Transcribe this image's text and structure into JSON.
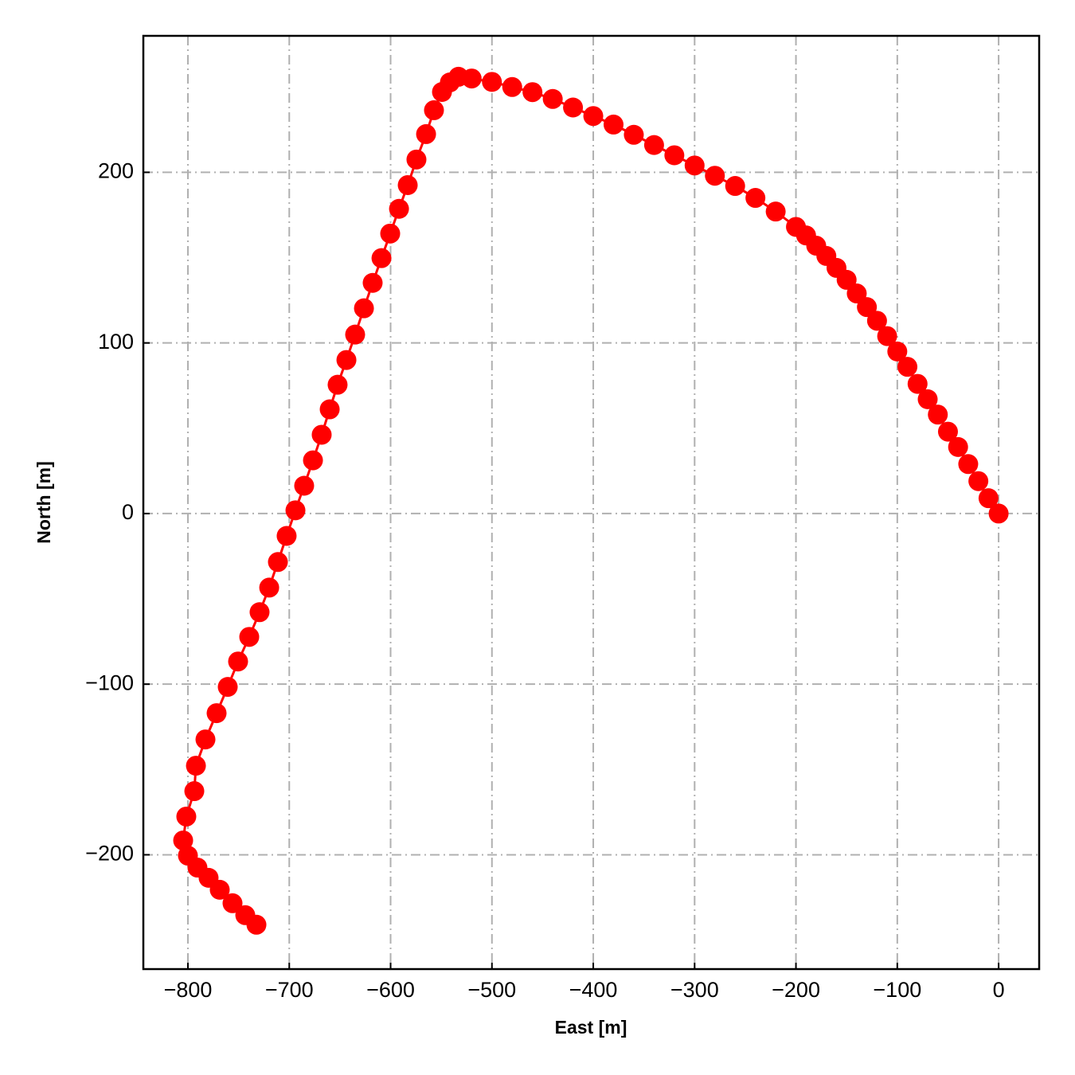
{
  "chart_data": {
    "type": "line",
    "xlabel": "East [m]",
    "ylabel": "North [m]",
    "xlim": [
      -844,
      40
    ],
    "ylim": [
      -267,
      280
    ],
    "grid": true,
    "xticks": [
      {
        "value": -800,
        "label": "−800"
      },
      {
        "value": -700,
        "label": "−700"
      },
      {
        "value": -600,
        "label": "−600"
      },
      {
        "value": -500,
        "label": "−500"
      },
      {
        "value": -400,
        "label": "−400"
      },
      {
        "value": -300,
        "label": "−300"
      },
      {
        "value": -200,
        "label": "−200"
      },
      {
        "value": -100,
        "label": "−100"
      },
      0
    ],
    "yticks": [
      {
        "value": -200,
        "label": "−200"
      },
      {
        "value": -100,
        "label": "−100"
      },
      0,
      100,
      200
    ],
    "series": [
      {
        "color": "#ff0000",
        "x": [
          0,
          -10,
          -20,
          -30,
          -40,
          -50,
          -60,
          -70,
          -80,
          -90,
          -100,
          -110,
          -120,
          -130,
          -140,
          -150,
          -160,
          -170,
          -180,
          -190,
          -200,
          -220,
          -240,
          -260,
          -280,
          -300,
          -320,
          -340,
          -360,
          -380,
          -400,
          -420,
          -440,
          -460,
          -480,
          -500,
          -520,
          -533,
          -541.5,
          -549.3,
          -557.2,
          -565.0,
          -574.5,
          -583.1,
          -591.7,
          -600.4,
          -609.0,
          -617.7,
          -626.3,
          -635.0,
          -643.6,
          -652.3,
          -660.1,
          -668.0,
          -676.6,
          -685.3,
          -693.9,
          -702.6,
          -711.2,
          -719.8,
          -729.3,
          -739.5,
          -750.5,
          -760.7,
          -771.7,
          -782.7,
          -792.1,
          -793.7,
          -801.6,
          -804.7,
          -800.0,
          -790.6,
          -779.6,
          -768.6,
          -756.0,
          -743.4,
          -732.4
        ],
        "y": [
          0,
          9,
          19,
          29,
          39,
          48,
          58,
          67,
          76,
          86,
          95,
          104,
          113,
          121,
          129,
          137,
          144,
          151,
          157,
          163,
          168,
          177,
          185,
          192,
          198,
          204,
          210,
          216,
          222,
          228,
          233,
          238,
          243,
          247,
          250,
          253,
          255,
          256,
          252.7,
          247.1,
          236.4,
          222.4,
          207.5,
          192.5,
          178.6,
          164.1,
          149.7,
          135.2,
          120.3,
          104.9,
          90.0,
          75.5,
          61.1,
          46.2,
          31.2,
          16.3,
          1.9,
          -13.1,
          -28.4,
          -43.4,
          -57.8,
          -72.3,
          -86.7,
          -101.6,
          -117.0,
          -132.4,
          -147.8,
          -162.7,
          -177.6,
          -191.6,
          -200.5,
          -207.5,
          -213.5,
          -220.5,
          -228.4,
          -235.4,
          -241.0
        ]
      }
    ]
  }
}
